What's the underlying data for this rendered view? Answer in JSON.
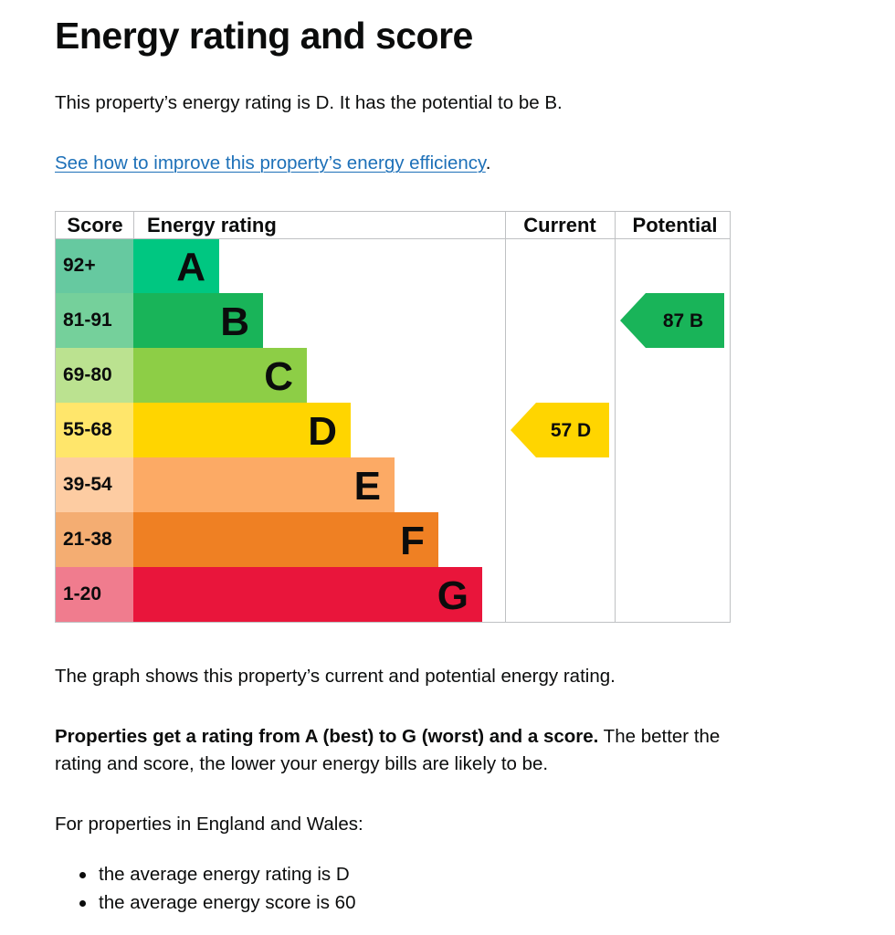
{
  "page": {
    "title": "Energy rating and score",
    "intro": "This property’s energy rating is D. It has the potential to be B.",
    "improve_link": "See how to improve this property’s energy efficiency",
    "improve_link_suffix": ".",
    "graph_note": "The graph shows this property’s current and potential energy rating.",
    "rating_explain_bold": "Properties get a rating from A (best) to G (worst) and a score.",
    "rating_explain_rest": " The better the rating and score, the lower your energy bills are likely to be.",
    "wales_intro": "For properties in England and Wales:",
    "averages": [
      "the average energy rating is D",
      "the average energy score is 60"
    ]
  },
  "chart_data": {
    "type": "table",
    "headers": {
      "score": "Score",
      "rating": "Energy rating",
      "current": "Current",
      "potential": "Potential"
    },
    "bands": [
      {
        "letter": "A",
        "score": "92+",
        "color": "#00c781",
        "score_bg": "#66c9a0"
      },
      {
        "letter": "B",
        "score": "81-91",
        "color": "#19b459",
        "score_bg": "#75d09b"
      },
      {
        "letter": "C",
        "score": "69-80",
        "color": "#8dce46",
        "score_bg": "#bbe290"
      },
      {
        "letter": "D",
        "score": "55-68",
        "color": "#ffd500",
        "score_bg": "#ffe66b"
      },
      {
        "letter": "E",
        "score": "39-54",
        "color": "#fcaa65",
        "score_bg": "#fdcca2"
      },
      {
        "letter": "F",
        "score": "21-38",
        "color": "#ef8023",
        "score_bg": "#f4ad72"
      },
      {
        "letter": "G",
        "score": "1-20",
        "color": "#e9153b",
        "score_bg": "#f07c8e"
      }
    ],
    "current": {
      "score": 57,
      "letter": "D",
      "color": "#ffd500"
    },
    "potential": {
      "score": 87,
      "letter": "B",
      "color": "#19b459"
    }
  }
}
